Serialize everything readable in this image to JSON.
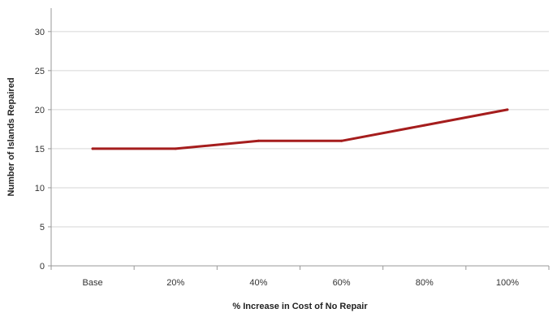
{
  "chart_data": {
    "type": "line",
    "title": "",
    "xlabel": "% Increase in Cost of No Repair",
    "ylabel": "Number of Islands Repaired",
    "categories": [
      "Base",
      "20%",
      "40%",
      "60%",
      "80%",
      "100%"
    ],
    "series": [
      {
        "values": [
          15,
          15,
          16,
          16,
          18,
          20
        ],
        "color": "#a51d1d"
      }
    ],
    "ylim": [
      0,
      30
    ],
    "yticks": [
      0,
      5,
      10,
      15,
      20,
      25,
      30
    ],
    "grid": true,
    "legend": "none"
  }
}
